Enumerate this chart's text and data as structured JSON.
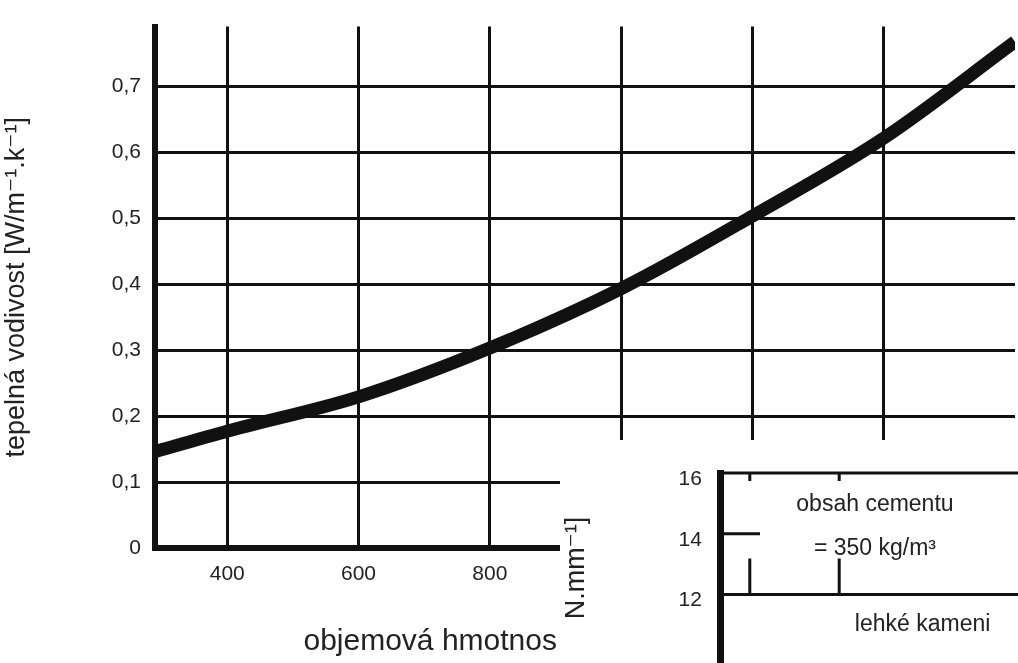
{
  "chart_data": [
    {
      "type": "line",
      "xlabel": "objemová hmotnos",
      "ylabel": "tepelná vodivost [W/m⁻¹.k⁻¹]",
      "x": [
        290,
        400,
        600,
        800,
        1000,
        1200,
        1400,
        1600
      ],
      "series": [
        {
          "color": "#111111",
          "values": [
            0.146,
            0.177,
            0.229,
            0.303,
            0.393,
            0.503,
            0.621,
            0.767
          ]
        }
      ],
      "xlim": [
        290,
        1600
      ],
      "xticks": [
        400,
        600,
        800,
        {
          "value": 1000,
          "label": null
        },
        {
          "value": 1200,
          "label": null
        },
        {
          "value": 1400,
          "label": null
        }
      ],
      "ylim": [
        0,
        0.79
      ],
      "yticks": [
        {
          "value": 0,
          "label": "0"
        },
        {
          "value": 0.1,
          "label": "0,1"
        },
        {
          "value": 0.2,
          "label": "0,2"
        },
        {
          "value": 0.3,
          "label": "0,3"
        },
        {
          "value": 0.4,
          "label": "0,4"
        },
        {
          "value": 0.5,
          "label": "0,5"
        },
        {
          "value": 0.6,
          "label": "0,6"
        },
        {
          "value": 0.7,
          "label": "0,7"
        }
      ],
      "grid": true,
      "legend": false
    },
    {
      "type": "other",
      "ylabel": "N.mm⁻¹]",
      "annotations": [
        "16",
        "14",
        "12",
        "obsah cementu",
        "= 350 kg/m³",
        "lehké kameni"
      ]
    }
  ]
}
